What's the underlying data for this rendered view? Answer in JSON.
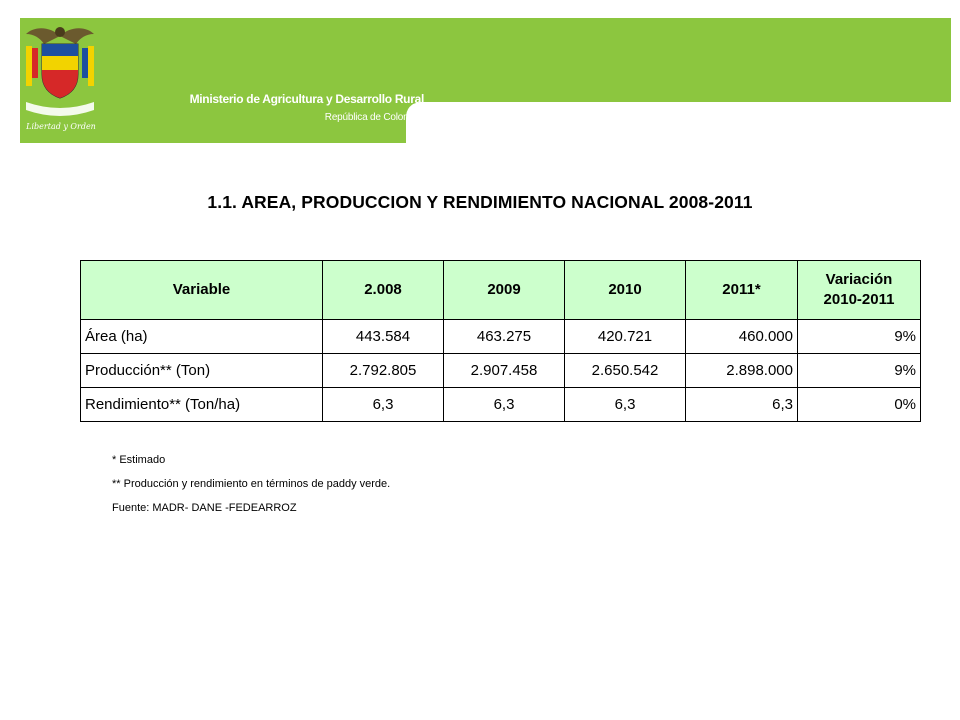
{
  "header": {
    "ministry": "Ministerio de Agricultura y Desarrollo Rural",
    "republic": "República de Colombia",
    "motto": "Libertad y Orden",
    "brand_color": "#8cc63f"
  },
  "title": "1.1. AREA, PRODUCCION Y RENDIMIENTO NACIONAL  2008-2011",
  "table": {
    "headers": [
      "Variable",
      "2.008",
      "2009",
      "2010",
      "2011*",
      "Variación 2010-2011"
    ],
    "rows": [
      [
        "Área (ha)",
        "443.584",
        "463.275",
        "420.721",
        "460.000",
        "9%"
      ],
      [
        "Producción** (Ton)",
        "2.792.805",
        "2.907.458",
        "2.650.542",
        "2.898.000",
        "9%"
      ],
      [
        "Rendimiento** (Ton/ha)",
        "6,3",
        "6,3",
        "6,3",
        "6,3",
        "0%"
      ]
    ],
    "header_bg": "#ccffcc"
  },
  "notes": [
    "* Estimado",
    "**  Producción y rendimiento en términos de paddy verde.",
    "Fuente: MADR- DANE -FEDEARROZ"
  ]
}
